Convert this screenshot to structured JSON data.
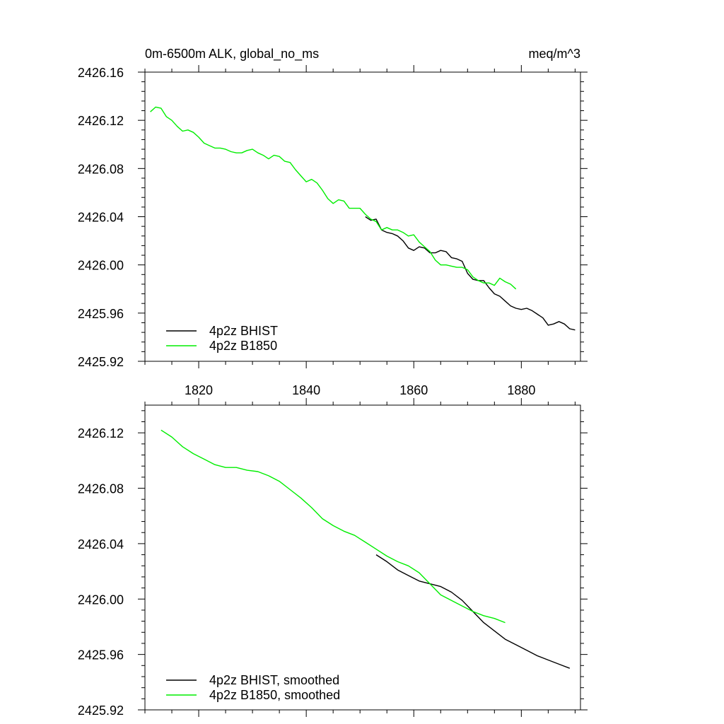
{
  "chart_data": [
    {
      "type": "line",
      "title_left": "0m-6500m ALK, global_no_ms",
      "title_right": "meq/m^3",
      "xlim": [
        1810,
        1891
      ],
      "ylim": [
        2425.92,
        2426.16
      ],
      "x_ticks": [
        1820,
        1840,
        1860,
        1880
      ],
      "x_tick_labels": [
        "1820",
        "1840",
        "1860",
        "1880"
      ],
      "y_ticks": [
        2425.92,
        2425.96,
        2426.0,
        2426.04,
        2426.08,
        2426.12,
        2426.16
      ],
      "y_tick_labels": [
        "2425.92",
        "2425.96",
        "2426.00",
        "2426.04",
        "2426.08",
        "2426.12",
        "2426.16"
      ],
      "grid": false,
      "legend_position": "bottom-left",
      "series": [
        {
          "name": "4p2z BHIST",
          "color": "#000000",
          "x": [
            1851,
            1852,
            1853,
            1854,
            1855,
            1856,
            1857,
            1858,
            1859,
            1860,
            1861,
            1862,
            1863,
            1864,
            1865,
            1866,
            1867,
            1868,
            1869,
            1870,
            1871,
            1872,
            1873,
            1874,
            1875,
            1876,
            1877,
            1878,
            1879,
            1880,
            1881,
            1882,
            1883,
            1884,
            1885,
            1886,
            1887,
            1888,
            1889,
            1890
          ],
          "y": [
            2426.04,
            2426.037,
            2426.038,
            2426.029,
            2426.027,
            2426.026,
            2426.024,
            2426.02,
            2426.014,
            2426.012,
            2426.015,
            2426.014,
            2426.01,
            2426.01,
            2426.012,
            2426.011,
            2426.006,
            2426.005,
            2426.003,
            2425.993,
            2425.988,
            2425.987,
            2425.987,
            2425.981,
            2425.976,
            2425.974,
            2425.97,
            2425.966,
            2425.964,
            2425.963,
            2425.964,
            2425.962,
            2425.959,
            2425.956,
            2425.95,
            2425.951,
            2425.953,
            2425.951,
            2425.947,
            2425.946
          ]
        },
        {
          "name": "4p2z B1850",
          "color": "#00ee00",
          "x": [
            1811,
            1812,
            1813,
            1814,
            1815,
            1816,
            1817,
            1818,
            1819,
            1820,
            1821,
            1822,
            1823,
            1824,
            1825,
            1826,
            1827,
            1828,
            1829,
            1830,
            1831,
            1832,
            1833,
            1834,
            1835,
            1836,
            1837,
            1838,
            1839,
            1840,
            1841,
            1842,
            1843,
            1844,
            1845,
            1846,
            1847,
            1848,
            1849,
            1850,
            1851,
            1852,
            1853,
            1854,
            1855,
            1856,
            1857,
            1858,
            1859,
            1860,
            1861,
            1862,
            1863,
            1864,
            1865,
            1866,
            1867,
            1868,
            1869,
            1870,
            1871,
            1872,
            1873,
            1874,
            1875,
            1876,
            1877,
            1878,
            1879
          ],
          "y": [
            2426.127,
            2426.131,
            2426.13,
            2426.123,
            2426.12,
            2426.115,
            2426.111,
            2426.112,
            2426.11,
            2426.106,
            2426.101,
            2426.099,
            2426.097,
            2426.097,
            2426.096,
            2426.094,
            2426.093,
            2426.093,
            2426.095,
            2426.096,
            2426.093,
            2426.091,
            2426.088,
            2426.091,
            2426.09,
            2426.086,
            2426.085,
            2426.079,
            2426.074,
            2426.069,
            2426.071,
            2426.068,
            2426.062,
            2426.055,
            2426.051,
            2426.054,
            2426.053,
            2426.047,
            2426.047,
            2426.047,
            2426.042,
            2426.038,
            2426.036,
            2426.029,
            2426.031,
            2426.029,
            2426.029,
            2426.027,
            2426.024,
            2426.025,
            2426.019,
            2426.015,
            2426.011,
            2426.004,
            2426.0,
            2426.0,
            2425.999,
            2425.998,
            2425.998,
            2425.996,
            2425.99,
            2425.987,
            2425.985,
            2425.985,
            2425.983,
            2425.989,
            2425.986,
            2425.984,
            2425.98
          ]
        }
      ]
    },
    {
      "type": "line",
      "xlim": [
        1810,
        1891
      ],
      "ylim": [
        2425.92,
        2426.14
      ],
      "x_ticks": [
        1820,
        1840,
        1860,
        1880
      ],
      "y_ticks": [
        2425.92,
        2425.96,
        2426.0,
        2426.04,
        2426.08,
        2426.12
      ],
      "y_tick_labels": [
        "2425.92",
        "2425.96",
        "2426.00",
        "2426.04",
        "2426.08",
        "2426.12"
      ],
      "grid": false,
      "legend_position": "bottom-left",
      "series": [
        {
          "name": "4p2z BHIST, smoothed",
          "color": "#000000",
          "x": [
            1853,
            1855,
            1857,
            1859,
            1861,
            1863,
            1865,
            1867,
            1869,
            1871,
            1873,
            1875,
            1877,
            1879,
            1881,
            1883,
            1885,
            1887,
            1889
          ],
          "y": [
            2426.032,
            2426.027,
            2426.021,
            2426.017,
            2426.013,
            2426.011,
            2426.009,
            2426.005,
            2425.999,
            2425.991,
            2425.983,
            2425.977,
            2425.971,
            2425.967,
            2425.963,
            2425.959,
            2425.956,
            2425.953,
            2425.95
          ]
        },
        {
          "name": "4p2z B1850, smoothed",
          "color": "#00ee00",
          "x": [
            1813,
            1815,
            1817,
            1819,
            1821,
            1823,
            1825,
            1827,
            1829,
            1831,
            1833,
            1835,
            1837,
            1839,
            1841,
            1843,
            1845,
            1847,
            1849,
            1851,
            1853,
            1855,
            1857,
            1859,
            1861,
            1863,
            1865,
            1867,
            1869,
            1871,
            1873,
            1875,
            1877
          ],
          "y": [
            2426.122,
            2426.117,
            2426.11,
            2426.105,
            2426.101,
            2426.097,
            2426.095,
            2426.095,
            2426.093,
            2426.092,
            2426.089,
            2426.085,
            2426.079,
            2426.073,
            2426.066,
            2426.058,
            2426.053,
            2426.049,
            2426.046,
            2426.041,
            2426.036,
            2426.031,
            2426.027,
            2426.024,
            2426.019,
            2426.011,
            2426.003,
            2425.999,
            2425.995,
            2425.991,
            2425.988,
            2425.986,
            2425.983
          ]
        }
      ]
    }
  ]
}
